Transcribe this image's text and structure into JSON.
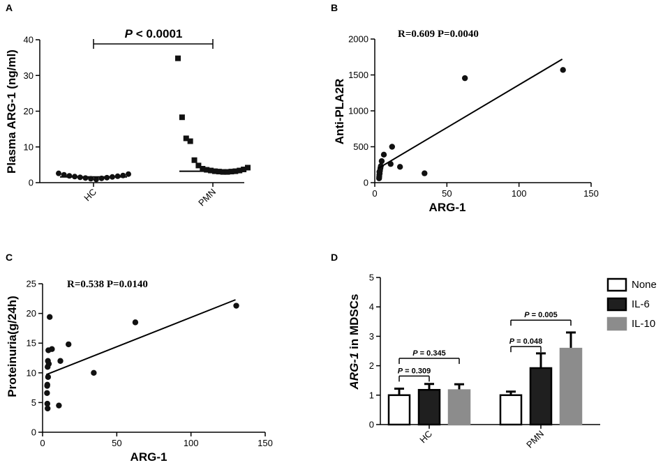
{
  "chart_data": [
    {
      "id": "A",
      "type": "scatter",
      "panel_label": "A",
      "ylabel": "Plasma ARG-1 (ng/ml)",
      "ylim": [
        0,
        40
      ],
      "yticks": [
        0,
        10,
        20,
        30,
        40
      ],
      "categories": [
        "HC",
        "PMN"
      ],
      "series": [
        {
          "name": "HC",
          "marker": "circle",
          "values": [
            2.6,
            2.2,
            1.9,
            1.7,
            1.5,
            1.3,
            1.1,
            0.9,
            1.2,
            1.4,
            1.6,
            1.8,
            2.0,
            2.4
          ],
          "median": 1.6
        },
        {
          "name": "PMN",
          "marker": "square",
          "values": [
            34.8,
            18.3,
            12.4,
            11.6,
            6.3,
            4.8,
            3.9,
            3.6,
            3.4,
            3.2,
            3.1,
            3.0,
            3.0,
            3.1,
            3.2,
            3.4,
            3.7,
            4.2
          ],
          "median": 3.2
        }
      ],
      "comparison": {
        "prefix": "P",
        "text": " < 0.0001"
      }
    },
    {
      "id": "B",
      "type": "scatter",
      "panel_label": "B",
      "xlabel": "ARG-1",
      "ylabel": "Anti-PLA2R",
      "xlim": [
        0,
        150
      ],
      "ylim": [
        0,
        2000
      ],
      "xticks": [
        0,
        50,
        100,
        150
      ],
      "yticks": [
        0,
        500,
        1000,
        1500,
        2000
      ],
      "stat": "R=0.609  P=0.0040",
      "points": [
        [
          130.5,
          1570
        ],
        [
          62.5,
          1455
        ],
        [
          34.5,
          130
        ],
        [
          17.5,
          220
        ],
        [
          12.0,
          500
        ],
        [
          11.0,
          260
        ],
        [
          6.3,
          390
        ],
        [
          4.8,
          300
        ],
        [
          3.9,
          200
        ],
        [
          3.6,
          165
        ],
        [
          3.4,
          130
        ],
        [
          3.2,
          110
        ],
        [
          3.1,
          85
        ],
        [
          3.0,
          60
        ],
        [
          3.2,
          150
        ],
        [
          4.2,
          230
        ]
      ],
      "fit_line": [
        [
          2.5,
          200
        ],
        [
          130,
          1720
        ]
      ]
    },
    {
      "id": "C",
      "type": "scatter",
      "panel_label": "C",
      "xlabel": "ARG-1",
      "ylabel": "Proteinuria(g/24h)",
      "xlim": [
        0,
        150
      ],
      "ylim": [
        0,
        25
      ],
      "xticks": [
        0,
        50,
        100,
        150
      ],
      "yticks": [
        0,
        5,
        10,
        15,
        20,
        25
      ],
      "stat": "R=0.538  P=0.0140",
      "points": [
        [
          130.5,
          21.3
        ],
        [
          62.5,
          18.5
        ],
        [
          34.5,
          10.0
        ],
        [
          17.5,
          14.8
        ],
        [
          12.0,
          12.0
        ],
        [
          11.0,
          4.5
        ],
        [
          6.3,
          14.0
        ],
        [
          4.8,
          19.4
        ],
        [
          3.9,
          13.8
        ],
        [
          3.6,
          12.0
        ],
        [
          3.4,
          11.0
        ],
        [
          3.2,
          8.0
        ],
        [
          3.1,
          7.8
        ],
        [
          3.0,
          6.6
        ],
        [
          3.2,
          4.8
        ],
        [
          3.4,
          4.0
        ],
        [
          3.7,
          9.3
        ],
        [
          4.2,
          11.5
        ]
      ],
      "fit_line": [
        [
          2.5,
          9.7
        ],
        [
          130,
          22.3
        ]
      ]
    },
    {
      "id": "D",
      "type": "bar",
      "panel_label": "D",
      "ylabel_italic": "ARG-1",
      "ylabel_rest": " in MDSCs",
      "ylim": [
        0,
        5
      ],
      "yticks": [
        0,
        1,
        2,
        3,
        4,
        5
      ],
      "categories": [
        "HC",
        "PMN"
      ],
      "series": [
        {
          "name": "None",
          "color": "#ffffff",
          "values": [
            1.0,
            1.0
          ],
          "errors": [
            0.22,
            0.12
          ]
        },
        {
          "name": "IL-6",
          "color": "#1f1f1f",
          "values": [
            1.18,
            1.92
          ],
          "errors": [
            0.2,
            0.5
          ]
        },
        {
          "name": "IL-10",
          "color": "#8c8c8c",
          "values": [
            1.17,
            2.58
          ],
          "errors": [
            0.2,
            0.55
          ]
        }
      ],
      "comparisons": [
        {
          "group": "HC",
          "from": 0,
          "to": 1,
          "level": 1.65,
          "prefix": "P",
          "text": " = 0.309"
        },
        {
          "group": "HC",
          "from": 0,
          "to": 2,
          "level": 2.25,
          "prefix": "P",
          "text": " = 0.345"
        },
        {
          "group": "PMN",
          "from": 0,
          "to": 1,
          "level": 2.65,
          "prefix": "P",
          "text": " = 0.048"
        },
        {
          "group": "PMN",
          "from": 0,
          "to": 2,
          "level": 3.55,
          "prefix": "P",
          "text": " = 0.005"
        }
      ],
      "legend": [
        "None",
        "IL-6",
        "IL-10"
      ]
    }
  ]
}
